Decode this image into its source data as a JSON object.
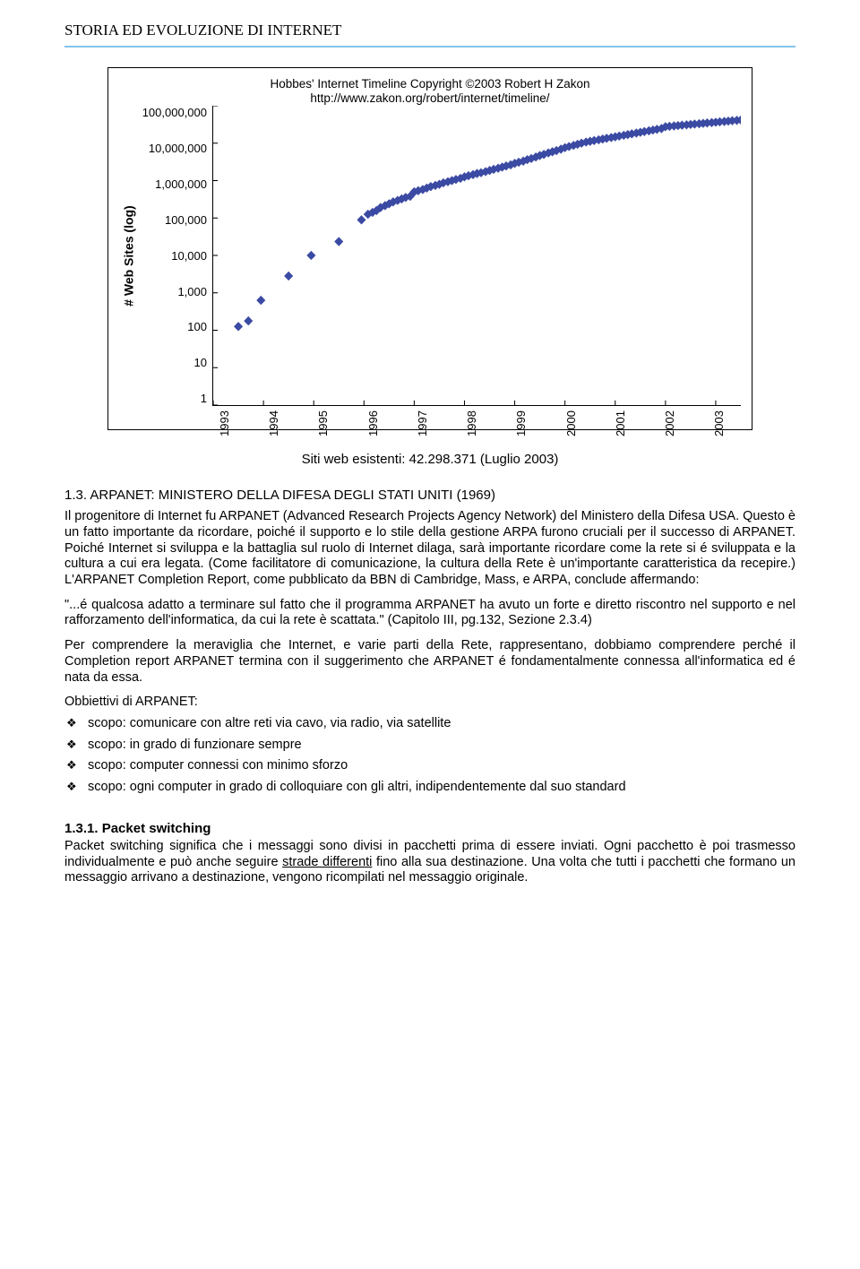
{
  "header": {
    "title": "STORIA ED EVOLUZIONE DI INTERNET"
  },
  "chart": {
    "type": "scatter",
    "attribution_line1": "Hobbes' Internet Timeline Copyright ©2003 Robert H Zakon",
    "attribution_line2": "http://www.zakon.org/robert/internet/timeline/",
    "ylabel": "# Web Sites (log)",
    "ytick_labels": [
      "100,000,000",
      "10,000,000",
      "1,000,000",
      "100,000",
      "10,000",
      "1,000",
      "100",
      "10",
      "1"
    ],
    "ylim_log": [
      0,
      8
    ],
    "xtick_labels": [
      "1993",
      "1994",
      "1995",
      "1996",
      "1997",
      "1998",
      "1999",
      "2000",
      "2001",
      "2002",
      "2003"
    ],
    "xlim": [
      1993,
      2003.5
    ],
    "marker_color": "#3b4aa3",
    "grid": false,
    "points_xy_log": [
      [
        1993.5,
        2.1
      ],
      [
        1993.7,
        2.25
      ],
      [
        1993.95,
        2.8
      ],
      [
        1994.5,
        3.45
      ],
      [
        1994.95,
        4.0
      ],
      [
        1995.5,
        4.37
      ],
      [
        1995.95,
        4.95
      ],
      [
        1996.08,
        5.1
      ],
      [
        1996.17,
        5.15
      ],
      [
        1996.25,
        5.2
      ],
      [
        1996.33,
        5.28
      ],
      [
        1996.42,
        5.33
      ],
      [
        1996.5,
        5.38
      ],
      [
        1996.58,
        5.43
      ],
      [
        1996.67,
        5.47
      ],
      [
        1996.75,
        5.51
      ],
      [
        1996.83,
        5.55
      ],
      [
        1996.92,
        5.58
      ],
      [
        1997.0,
        5.7
      ],
      [
        1997.08,
        5.73
      ],
      [
        1997.17,
        5.76
      ],
      [
        1997.25,
        5.8
      ],
      [
        1997.33,
        5.84
      ],
      [
        1997.42,
        5.87
      ],
      [
        1997.5,
        5.9
      ],
      [
        1997.58,
        5.94
      ],
      [
        1997.67,
        5.97
      ],
      [
        1997.75,
        6.0
      ],
      [
        1997.83,
        6.03
      ],
      [
        1997.92,
        6.06
      ],
      [
        1998.0,
        6.1
      ],
      [
        1998.08,
        6.13
      ],
      [
        1998.17,
        6.16
      ],
      [
        1998.25,
        6.19
      ],
      [
        1998.33,
        6.21
      ],
      [
        1998.42,
        6.24
      ],
      [
        1998.5,
        6.27
      ],
      [
        1998.58,
        6.3
      ],
      [
        1998.67,
        6.33
      ],
      [
        1998.75,
        6.36
      ],
      [
        1998.83,
        6.39
      ],
      [
        1998.92,
        6.42
      ],
      [
        1999.0,
        6.46
      ],
      [
        1999.08,
        6.49
      ],
      [
        1999.17,
        6.52
      ],
      [
        1999.25,
        6.56
      ],
      [
        1999.33,
        6.59
      ],
      [
        1999.42,
        6.63
      ],
      [
        1999.5,
        6.67
      ],
      [
        1999.58,
        6.7
      ],
      [
        1999.67,
        6.74
      ],
      [
        1999.75,
        6.77
      ],
      [
        1999.83,
        6.8
      ],
      [
        1999.92,
        6.84
      ],
      [
        2000.0,
        6.88
      ],
      [
        2000.08,
        6.91
      ],
      [
        2000.17,
        6.94
      ],
      [
        2000.25,
        6.97
      ],
      [
        2000.33,
        7.0
      ],
      [
        2000.42,
        7.03
      ],
      [
        2000.5,
        7.05
      ],
      [
        2000.58,
        7.07
      ],
      [
        2000.67,
        7.09
      ],
      [
        2000.75,
        7.11
      ],
      [
        2000.83,
        7.13
      ],
      [
        2000.92,
        7.15
      ],
      [
        2001.0,
        7.17
      ],
      [
        2001.08,
        7.19
      ],
      [
        2001.17,
        7.21
      ],
      [
        2001.25,
        7.23
      ],
      [
        2001.33,
        7.25
      ],
      [
        2001.42,
        7.27
      ],
      [
        2001.5,
        7.29
      ],
      [
        2001.58,
        7.31
      ],
      [
        2001.67,
        7.33
      ],
      [
        2001.75,
        7.35
      ],
      [
        2001.83,
        7.37
      ],
      [
        2001.92,
        7.39
      ],
      [
        2002.0,
        7.44
      ],
      [
        2002.08,
        7.45
      ],
      [
        2002.17,
        7.46
      ],
      [
        2002.25,
        7.47
      ],
      [
        2002.33,
        7.48
      ],
      [
        2002.42,
        7.49
      ],
      [
        2002.5,
        7.5
      ],
      [
        2002.58,
        7.51
      ],
      [
        2002.67,
        7.52
      ],
      [
        2002.75,
        7.53
      ],
      [
        2002.83,
        7.54
      ],
      [
        2002.92,
        7.55
      ],
      [
        2003.0,
        7.56
      ],
      [
        2003.08,
        7.57
      ],
      [
        2003.17,
        7.58
      ],
      [
        2003.25,
        7.59
      ],
      [
        2003.33,
        7.6
      ],
      [
        2003.42,
        7.61
      ],
      [
        2003.5,
        7.62
      ]
    ]
  },
  "caption": "Siti web esistenti: 42.298.371 (Luglio 2003)",
  "section_1_3": {
    "heading": "1.3.   ARPANET: MINISTERO DELLA DIFESA DEGLI STATI UNITI (1969)",
    "p1": "Il progenitore di Internet fu ARPANET (Advanced Research Projects Agency Network) del Ministero della Difesa USA. Questo è un fatto importante da ricordare, poiché il supporto e lo stile della gestione ARPA furono cruciali per il successo di ARPANET. Poiché Internet si sviluppa e la battaglia sul ruolo di Internet dilaga, sarà importante ricordare come la rete si é sviluppata e la cultura a cui era legata. (Come facilitatore di comunicazione, la cultura della Rete è un'importante caratteristica da recepire.) L'ARPANET Completion Report, come pubblicato da BBN di Cambridge, Mass, e ARPA, conclude affermando:",
    "p2": "\"...é qualcosa adatto a terminare sul fatto che il programma ARPANET ha avuto un forte e diretto riscontro nel supporto e nel rafforzamento dell'informatica, da cui la rete è scattata.\" (Capitolo III, pg.132, Sezione 2.3.4)",
    "p3": "Per comprendere la meraviglia che Internet, e varie parti della Rete, rappresentano, dobbiamo comprendere perché il Completion report ARPANET termina con il suggerimento che ARPANET é fondamentalmente connessa all'informatica ed é nata da essa.",
    "obj_title": "Obbiettivi di ARPANET:",
    "bullets": [
      "scopo: comunicare con altre reti via cavo, via radio, via satellite",
      "scopo: in grado di funzionare sempre",
      "scopo: computer connessi con minimo sforzo",
      "scopo: ogni computer in grado di colloquiare con gli altri, indipendentemente dal suo standard"
    ]
  },
  "section_1_3_1": {
    "heading": "1.3.1. Packet switching",
    "p_pre": "Packet switching significa che i messaggi sono divisi in pacchetti prima di essere inviati. Ogni pacchetto è poi trasmesso individualmente e può anche seguire ",
    "p_under": "strade differenti",
    "p_post": " fino alla sua destinazione. Una volta che tutti i pacchetti che formano un messaggio arrivano a destinazione, vengono ricompilati nel messaggio originale."
  }
}
